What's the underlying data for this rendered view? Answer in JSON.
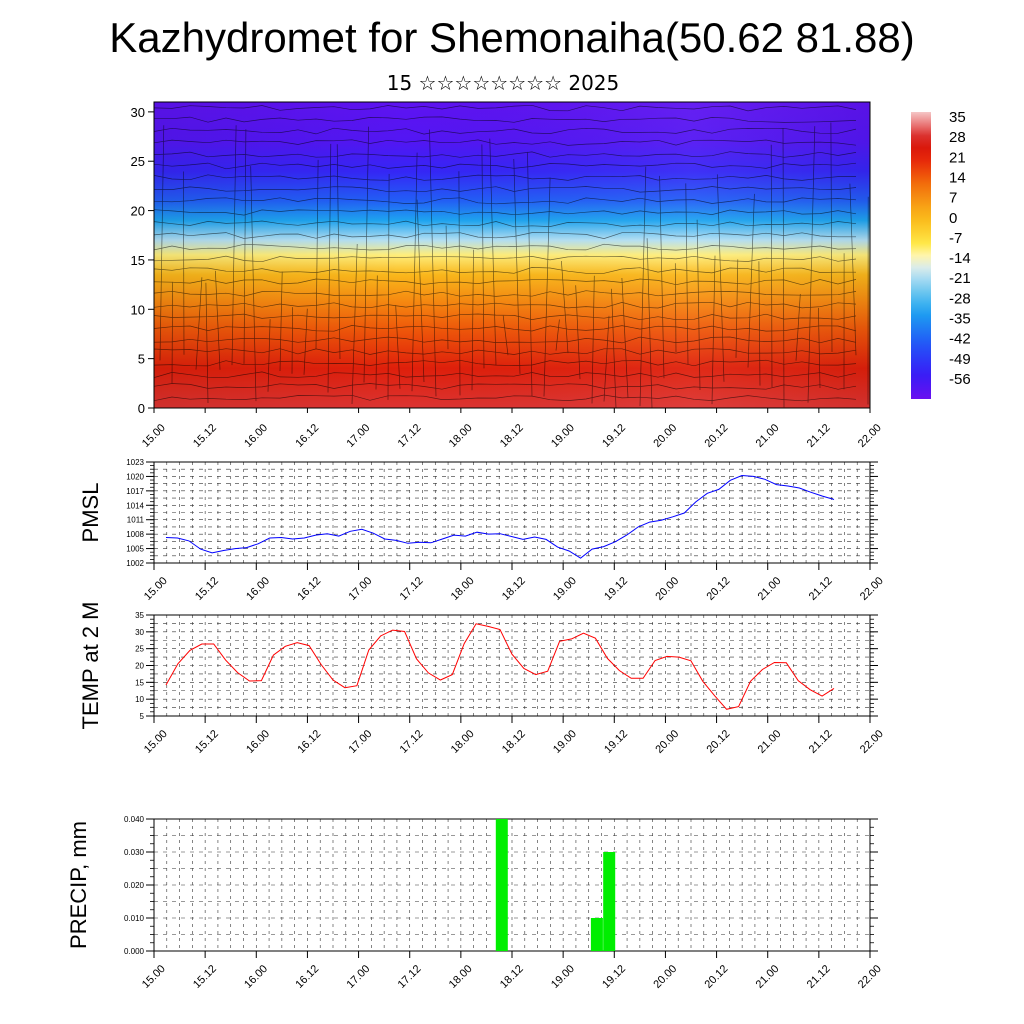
{
  "header": {
    "title": "Kazhydromet for Shemonaiha(50.62 81.88)",
    "subtitle": "15 ☆☆☆☆☆☆☆☆ 2025"
  },
  "chart_data": [
    {
      "type": "heatmap",
      "name": "vertical-profile",
      "title": "",
      "xlabel": "",
      "ylabel": "",
      "x_ticks": [
        "15.00",
        "15.12",
        "16.00",
        "16.12",
        "17.00",
        "17.12",
        "18.00",
        "18.12",
        "19.00",
        "19.12",
        "20.00",
        "20.12",
        "21.00",
        "21.12",
        "22.00"
      ],
      "y_ticks": [
        0,
        5,
        10,
        15,
        20,
        25,
        30
      ],
      "ylim": [
        0,
        31
      ],
      "colorbar_labels": [
        "35",
        "28",
        "21",
        "14",
        "7",
        "0",
        "-7",
        "-14",
        "-21",
        "-28",
        "-35",
        "-42",
        "-49",
        "-56"
      ],
      "colorbar_range": [
        -60,
        38
      ],
      "overlay": "wind barbs",
      "temperature_profile": [
        {
          "level": 0,
          "value": 30
        },
        {
          "level": 4,
          "value": 24
        },
        {
          "level": 8,
          "value": 16
        },
        {
          "level": 11,
          "value": 9
        },
        {
          "level": 13.5,
          "value": 2
        },
        {
          "level": 15.5,
          "value": -9
        },
        {
          "level": 17,
          "value": -18
        },
        {
          "level": 19,
          "value": -30
        },
        {
          "level": 21,
          "value": -40
        },
        {
          "level": 24,
          "value": -50
        },
        {
          "level": 27,
          "value": -56
        },
        {
          "level": 31,
          "value": -58
        }
      ]
    },
    {
      "type": "line",
      "name": "pmsl",
      "ylabel": "PMSL",
      "ylim": [
        1002,
        1023
      ],
      "y_ticks": [
        "1002",
        "1005",
        "1008",
        "1011",
        "1014",
        "1017",
        "1020",
        "1023"
      ],
      "x_ticks": [
        "15.00",
        "15.12",
        "16.00",
        "16.12",
        "17.00",
        "17.12",
        "18.00",
        "18.12",
        "19.00",
        "19.12",
        "20.00",
        "20.12",
        "21.00",
        "21.12",
        "22.00"
      ],
      "color": "#0000ff",
      "series": [
        {
          "values": [
            1007.3,
            1007.2,
            1006.6,
            1004.9,
            1004.1,
            1004.6,
            1005.0,
            1005.2,
            1006.0,
            1007.2,
            1007.3,
            1007.0,
            1007.2,
            1007.8,
            1008.1,
            1007.6,
            1008.6,
            1009.0,
            1008.2,
            1007.0,
            1006.7,
            1006.1,
            1006.3,
            1006.2,
            1007.0,
            1007.8,
            1007.6,
            1008.4,
            1008.0,
            1008.1,
            1007.5,
            1006.9,
            1007.4,
            1006.9,
            1005.3,
            1004.5,
            1003.0,
            1004.9,
            1005.4,
            1006.4,
            1007.8,
            1009.5,
            1010.5,
            1010.9,
            1011.6,
            1012.4,
            1014.7,
            1016.5,
            1017.3,
            1019.2,
            1020.2,
            1020.0,
            1019.4,
            1018.3,
            1018.0,
            1017.6,
            1016.7,
            1015.9,
            1015.2
          ]
        }
      ]
    },
    {
      "type": "line",
      "name": "temp-2m",
      "ylabel": "TEMP at 2 M",
      "ylim": [
        5,
        35
      ],
      "y_ticks": [
        "5",
        "10",
        "15",
        "20",
        "25",
        "30",
        "35"
      ],
      "x_ticks": [
        "15.00",
        "15.12",
        "16.00",
        "16.12",
        "17.00",
        "17.12",
        "18.00",
        "18.12",
        "19.00",
        "19.12",
        "20.00",
        "20.12",
        "21.00",
        "21.12",
        "22.00"
      ],
      "color": "#ff0000",
      "series": [
        {
          "values": [
            14.2,
            20.5,
            24.5,
            26.4,
            26.4,
            21.6,
            17.9,
            15.4,
            15.5,
            23.1,
            25.7,
            26.8,
            25.9,
            20.3,
            15.7,
            13.4,
            14.0,
            24.6,
            28.8,
            30.5,
            30.1,
            22.0,
            17.8,
            15.7,
            17.3,
            26.5,
            32.4,
            31.6,
            30.7,
            23.4,
            19.1,
            17.3,
            18.3,
            27.2,
            27.9,
            29.6,
            28.1,
            22.1,
            18.5,
            16.2,
            16.2,
            21.5,
            22.7,
            22.5,
            21.4,
            15.3,
            11.0,
            7.0,
            7.8,
            15.3,
            18.8,
            20.9,
            20.8,
            15.5,
            12.8,
            10.9,
            13.2
          ]
        }
      ]
    },
    {
      "type": "bar",
      "name": "precip",
      "ylabel": "PRECIP, mm",
      "ylim": [
        0,
        0.04
      ],
      "y_ticks": [
        "0.000",
        "0.010",
        "0.020",
        "0.030",
        "0.040"
      ],
      "x_ticks": [
        "15.00",
        "15.12",
        "16.00",
        "16.12",
        "17.00",
        "17.12",
        "18.00",
        "18.12",
        "19.00",
        "19.12",
        "20.00",
        "20.12",
        "21.00",
        "21.12",
        "22.00"
      ],
      "color": "#00ee00",
      "bars": [
        {
          "x": 18.4,
          "value": 0.04
        },
        {
          "x": 19.33,
          "value": 0.01
        },
        {
          "x": 19.45,
          "value": 0.03
        }
      ]
    }
  ]
}
